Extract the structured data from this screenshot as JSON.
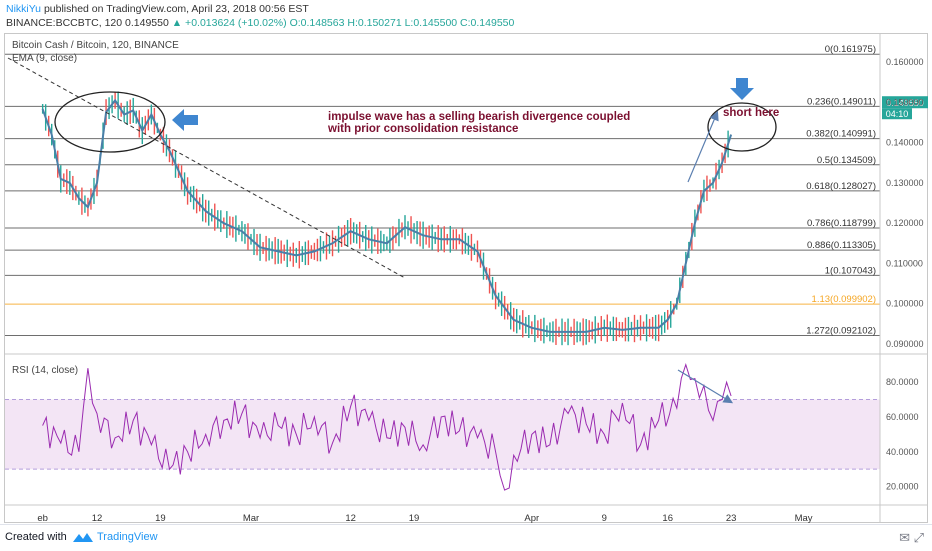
{
  "header": {
    "author": "NikkiYu",
    "published": "published on TradingView.com, April 23, 2018 00:56 EST",
    "symbol_line": "BINANCE:BCCBTC, 120 0.149550",
    "change": "▲ +0.013624 (+10.02%)",
    "ohlc": "O:0.148563 H:0.150271 L:0.145500 C:0.149550"
  },
  "legend": {
    "title": "Bitcoin Cash / Bitcoin, 120, BINANCE",
    "ema": "EMA (9, close)",
    "rsi": "RSI (14, close)"
  },
  "annotations": {
    "note_line1": "impulse wave has a selling bearish divergence coupled",
    "note_line2": "with prior consolidation resistance",
    "short_here": "short here"
  },
  "footer": {
    "created_with": "Created with",
    "brand": "TradingView"
  },
  "colors": {
    "ema": "#4a7fa8",
    "rsi": "#9a2bb0",
    "rsi_band": "#f3e5f5",
    "fib_line": "#555555",
    "fib_113": "#f5a623",
    "annotation_text": "#7b1030",
    "arrow": "#3f86d0",
    "candle_up": "#26a69a",
    "candle_down": "#ef5350"
  },
  "chart_data": [
    {
      "type": "line",
      "panel": "price",
      "series": [
        {
          "name": "EMA (9, close)",
          "x": [
            "Feb 6",
            "Feb 7",
            "Feb 8",
            "Feb 9",
            "Feb 10",
            "Feb 11",
            "Feb 12",
            "Feb 13",
            "Feb 14",
            "Feb 15",
            "Feb 16",
            "Feb 17",
            "Feb 18",
            "Feb 19",
            "Feb 20",
            "Feb 22",
            "Feb 24",
            "Feb 26",
            "Feb 28",
            "Mar 2",
            "Mar 4",
            "Mar 6",
            "Mar 8",
            "Mar 10",
            "Mar 12",
            "Mar 14",
            "Mar 16",
            "Mar 18",
            "Mar 20",
            "Mar 22",
            "Mar 24",
            "Mar 26",
            "Mar 28",
            "Mar 30",
            "Apr 1",
            "Apr 3",
            "Apr 5",
            "Apr 7",
            "Apr 9",
            "Apr 11",
            "Apr 13",
            "Apr 15",
            "Apr 16",
            "Apr 17",
            "Apr 18",
            "Apr 19",
            "Apr 20",
            "Apr 21",
            "Apr 22",
            "Apr 23"
          ],
          "values": [
            0.1484,
            0.142,
            0.131,
            0.13,
            0.1262,
            0.124,
            0.13,
            0.1476,
            0.1505,
            0.147,
            0.148,
            0.143,
            0.147,
            0.142,
            0.138,
            0.128,
            0.123,
            0.12,
            0.118,
            0.114,
            0.113,
            0.112,
            0.113,
            0.115,
            0.118,
            0.116,
            0.115,
            0.119,
            0.117,
            0.116,
            0.116,
            0.113,
            0.102,
            0.096,
            0.094,
            0.093,
            0.093,
            0.093,
            0.094,
            0.0935,
            0.094,
            0.094,
            0.096,
            0.1,
            0.11,
            0.12,
            0.128,
            0.13,
            0.135,
            0.142
          ]
        }
      ],
      "y_axis_ticks": [
        "0.160000",
        "0.150000",
        "0.140000",
        "0.130000",
        "0.120000",
        "0.110000",
        "0.100000",
        "0.090000"
      ],
      "ylim": [
        0.088,
        0.166
      ],
      "x_axis_ticks": [
        "eb",
        "12",
        "19",
        "Mar",
        "12",
        "19",
        "Apr",
        "9",
        "16",
        "23",
        "May"
      ],
      "fibonacci_levels": [
        {
          "label": "0(0.161975)",
          "value": 0.161975
        },
        {
          "label": "0.236(0.149011)",
          "value": 0.149011
        },
        {
          "label": "0.382(0.140991)",
          "value": 0.140991
        },
        {
          "label": "0.5(0.134509)",
          "value": 0.134509
        },
        {
          "label": "0.618(0.128027)",
          "value": 0.128027
        },
        {
          "label": "0.786(0.118799)",
          "value": 0.118799
        },
        {
          "label": "0.886(0.113305)",
          "value": 0.113305
        },
        {
          "label": "1(0.107043)",
          "value": 0.107043
        },
        {
          "label": "1.13(0.099902)",
          "value": 0.099902
        },
        {
          "label": "1.272(0.092102)",
          "value": 0.092102
        }
      ],
      "price_label": "0.149550",
      "countdown_label": "04:10"
    },
    {
      "type": "line",
      "panel": "rsi",
      "series": [
        {
          "name": "RSI (14, close)",
          "x": [
            "Feb 6",
            "Feb 8",
            "Feb 10",
            "Feb 11",
            "Feb 12",
            "Feb 14",
            "Feb 16",
            "Feb 18",
            "Feb 20",
            "Feb 22",
            "Feb 24",
            "Feb 26",
            "Feb 28",
            "Mar 2",
            "Mar 4",
            "Mar 6",
            "Mar 8",
            "Mar 10",
            "Mar 12",
            "Mar 14",
            "Mar 16",
            "Mar 18",
            "Mar 20",
            "Mar 22",
            "Mar 24",
            "Mar 26",
            "Mar 28",
            "Mar 29",
            "Mar 30",
            "Apr 1",
            "Apr 3",
            "Apr 5",
            "Apr 7",
            "Apr 9",
            "Apr 11",
            "Apr 13",
            "Apr 15",
            "Apr 17",
            "Apr 18",
            "Apr 19",
            "Apr 20",
            "Apr 21",
            "Apr 22",
            "Apr 23"
          ],
          "values": [
            55,
            45,
            40,
            88,
            62,
            48,
            58,
            44,
            30,
            40,
            50,
            58,
            62,
            48,
            55,
            50,
            60,
            45,
            66,
            58,
            48,
            54,
            44,
            60,
            52,
            48,
            40,
            18,
            38,
            50,
            44,
            62,
            56,
            50,
            68,
            44,
            58,
            65,
            90,
            82,
            78,
            58,
            70,
            72
          ]
        }
      ],
      "y_axis_ticks": [
        "80.0000",
        "60.0000",
        "40.0000",
        "20.0000"
      ],
      "ylim": [
        10,
        95
      ],
      "band": [
        30,
        70
      ]
    }
  ]
}
